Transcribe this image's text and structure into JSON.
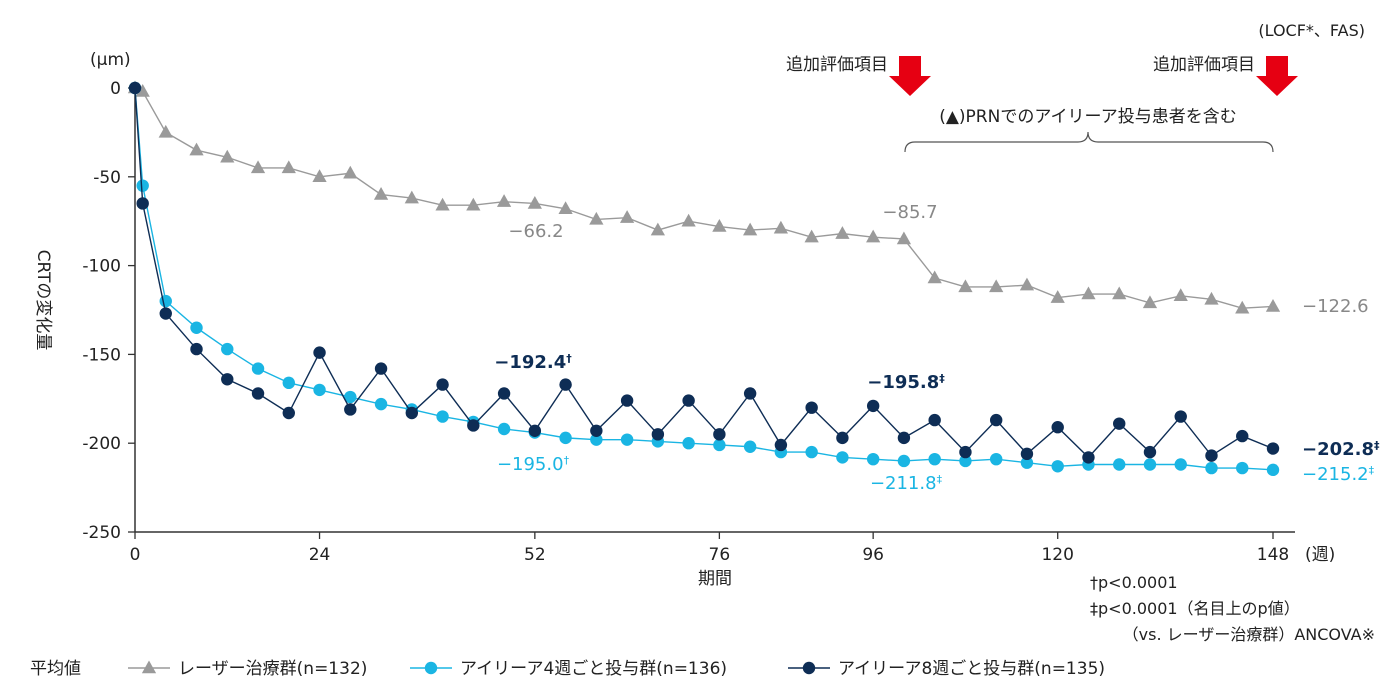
{
  "chart_data": {
    "type": "line",
    "ylabel": "CRTの変化量",
    "yunit": "(μm)",
    "xlabel": "期間",
    "xunit": "(週)",
    "population": "(LOCF*、FAS)",
    "ylim": [
      -250,
      0
    ],
    "yticks": [
      0,
      -50,
      -100,
      -150,
      -200,
      -250
    ],
    "ytick_labels": [
      "0",
      "-50",
      "-100",
      "-150",
      "-200",
      "-250"
    ],
    "xticks": [
      0,
      24,
      52,
      76,
      96,
      120,
      148
    ],
    "xtick_labels": [
      "0",
      "24",
      "52",
      "76",
      "96",
      "120",
      "148"
    ],
    "grid": false,
    "legend_position": "bottom",
    "legend_title": "平均値",
    "series": [
      {
        "name": "レーザー治療群(n=132)",
        "marker": "triangle",
        "color": "#9a9a9a",
        "x": [
          0,
          1,
          4,
          8,
          12,
          16,
          20,
          24,
          28,
          32,
          36,
          40,
          44,
          48,
          52,
          56,
          60,
          64,
          68,
          72,
          76,
          80,
          84,
          88,
          92,
          96,
          100,
          104,
          108,
          112,
          116,
          120,
          124,
          128,
          132,
          136,
          140,
          144,
          148
        ],
        "values": [
          0,
          -2,
          -25,
          -35,
          -39,
          -45,
          -45,
          -50,
          -48,
          -60,
          -62,
          -66,
          -66,
          -64,
          -65,
          -68,
          -74,
          -73,
          -80,
          -75,
          -78,
          -80,
          -79,
          -84,
          -82,
          -84,
          -85,
          -107,
          -112,
          -112,
          -111,
          -118,
          -116,
          -116,
          -121,
          -117,
          -119,
          -124,
          -123
        ]
      },
      {
        "name": "アイリーア4週ごと投与群(n=136)",
        "marker": "circle",
        "color": "#1ab5e3",
        "x": [
          0,
          1,
          4,
          8,
          12,
          16,
          20,
          24,
          28,
          32,
          36,
          40,
          44,
          48,
          52,
          56,
          60,
          64,
          68,
          72,
          76,
          80,
          84,
          88,
          92,
          96,
          100,
          104,
          108,
          112,
          116,
          120,
          124,
          128,
          132,
          136,
          140,
          144,
          148
        ],
        "values": [
          0,
          -55,
          -120,
          -135,
          -147,
          -158,
          -166,
          -170,
          -174,
          -178,
          -181,
          -185,
          -188,
          -192,
          -194,
          -197,
          -198,
          -198,
          -199,
          -200,
          -201,
          -202,
          -205,
          -205,
          -208,
          -209,
          -210,
          -209,
          -210,
          -209,
          -211,
          -213,
          -212,
          -212,
          -212,
          -212,
          -214,
          -214,
          -215
        ]
      },
      {
        "name": "アイリーア8週ごと投与群(n=135)",
        "marker": "circle",
        "color": "#0e2d55",
        "x": [
          0,
          1,
          4,
          8,
          12,
          16,
          20,
          24,
          28,
          32,
          36,
          40,
          44,
          48,
          52,
          56,
          60,
          64,
          68,
          72,
          76,
          80,
          84,
          88,
          92,
          96,
          100,
          104,
          108,
          112,
          116,
          120,
          124,
          128,
          132,
          136,
          140,
          144,
          148
        ],
        "values": [
          0,
          -65,
          -127,
          -147,
          -164,
          -172,
          -183,
          -149,
          -181,
          -158,
          -183,
          -167,
          -190,
          -172,
          -193,
          -167,
          -193,
          -176,
          -195,
          -176,
          -195,
          -172,
          -201,
          -180,
          -197,
          -179,
          -197,
          -187,
          -205,
          -187,
          -206,
          -191,
          -208,
          -189,
          -205,
          -185,
          -207,
          -196,
          -203
        ]
      }
    ],
    "annotations": {
      "laser_w52": "−66.2",
      "laser_w100": "−85.7",
      "laser_w148": "−122.6",
      "q8_w52": "−192.4",
      "q8_w52_mark": "†",
      "q4_w52": "−195.0",
      "q4_w52_mark": "†",
      "q8_w100": "−195.8",
      "q8_w100_mark": "‡",
      "q4_w100": "−211.8",
      "q4_w100_mark": "‡",
      "q8_w148": "−202.8",
      "q8_w148_mark": "‡",
      "q4_w148": "−215.2",
      "q4_w148_mark": "‡"
    },
    "additional_label_1": "追加評価項目",
    "additional_label_2": "追加評価項目",
    "prn_note": "(▲)PRNでのアイリーア投与患者を含む",
    "footnote_1": "†p<0.0001",
    "footnote_2": "‡p<0.0001（名目上のp値）",
    "footnote_3": "（vs. レーザー治療群）ANCOVA※",
    "colors": {
      "axis": "#333333",
      "arrow": "#e60012",
      "laser": "#9a9a9a",
      "q4": "#1ab5e3",
      "q8": "#0e2d55"
    }
  }
}
